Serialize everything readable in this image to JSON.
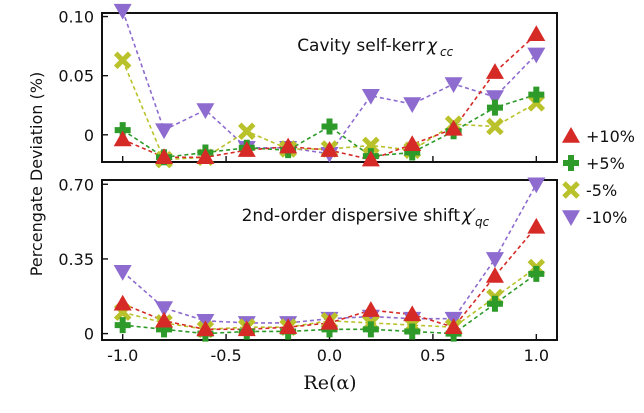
{
  "figure": {
    "ylabel": "Percengate Deviation (%)",
    "xlabel": "Re(α)"
  },
  "legend": {
    "placement": "right-center",
    "entries": [
      {
        "label": "+10%",
        "color": "#d62a26",
        "marker": "triangle-up"
      },
      {
        "label": "+5%",
        "color": "#2e9a2a",
        "marker": "plus"
      },
      {
        "label": "-5%",
        "color": "#b9c22a",
        "marker": "x"
      },
      {
        "label": "-10%",
        "color": "#8e6bcf",
        "marker": "triangle-down"
      }
    ]
  },
  "chart_data": [
    {
      "type": "line",
      "annotation": {
        "text": "Cavity self-kerr ",
        "symbol": "χ",
        "subscript": "cc",
        "prime": ""
      },
      "x": [
        -1.0,
        -0.8,
        -0.6,
        -0.4,
        -0.2,
        0.0,
        0.2,
        0.4,
        0.6,
        0.8,
        1.0
      ],
      "xlim": [
        -1.1,
        1.1
      ],
      "ylim": [
        -0.023,
        0.103
      ],
      "yticks": [
        0,
        0.05,
        0.1
      ],
      "ytick_labels": [
        "0",
        "0.05",
        "0.10"
      ],
      "xticks": [
        -1.0,
        -0.5,
        0.0,
        0.5,
        1.0
      ],
      "xtick_labels": [
        "",
        "",
        "",
        "",
        ""
      ],
      "series": [
        {
          "name": "+10%",
          "values": [
            -0.004,
            -0.019,
            -0.019,
            -0.013,
            -0.01,
            -0.013,
            -0.021,
            -0.008,
            0.005,
            0.053,
            0.085
          ]
        },
        {
          "name": "+5%",
          "values": [
            0.004,
            -0.019,
            -0.015,
            -0.011,
            -0.013,
            0.007,
            -0.018,
            -0.015,
            0.003,
            0.023,
            0.034
          ]
        },
        {
          "name": "-5%",
          "values": [
            0.063,
            -0.021,
            -0.019,
            0.003,
            -0.012,
            -0.012,
            -0.009,
            -0.013,
            0.009,
            0.007,
            0.027
          ]
        },
        {
          "name": "-10%",
          "values": [
            0.105,
            0.004,
            0.021,
            -0.011,
            -0.011,
            -0.016,
            0.033,
            0.026,
            0.043,
            0.032,
            0.068
          ]
        }
      ]
    },
    {
      "type": "line",
      "annotation": {
        "text": "2nd-order dispersive shift ",
        "symbol": "χ",
        "subscript": "qc",
        "prime": "′"
      },
      "x": [
        -1.0,
        -0.8,
        -0.6,
        -0.4,
        -0.2,
        0.0,
        0.2,
        0.4,
        0.6,
        0.8,
        1.0
      ],
      "xlim": [
        -1.1,
        1.1
      ],
      "ylim": [
        -0.03,
        0.72
      ],
      "yticks": [
        0,
        0.35,
        0.7
      ],
      "ytick_labels": [
        "0",
        "0.35",
        "0.70"
      ],
      "xticks": [
        -1.0,
        -0.5,
        0.0,
        0.5,
        1.0
      ],
      "xtick_labels": [
        "-1.0",
        "-0.5",
        "0.0",
        "0.5",
        "1.0"
      ],
      "series": [
        {
          "name": "+10%",
          "values": [
            0.14,
            0.06,
            0.02,
            0.02,
            0.03,
            0.05,
            0.11,
            0.09,
            0.03,
            0.27,
            0.5
          ]
        },
        {
          "name": "+5%",
          "values": [
            0.04,
            0.02,
            0.0,
            0.01,
            0.01,
            0.02,
            0.02,
            0.01,
            0.0,
            0.14,
            0.28
          ]
        },
        {
          "name": "-5%",
          "values": [
            0.1,
            0.05,
            0.02,
            0.03,
            0.03,
            0.06,
            0.05,
            0.04,
            0.03,
            0.17,
            0.31
          ]
        },
        {
          "name": "-10%",
          "values": [
            0.29,
            0.12,
            0.06,
            0.05,
            0.05,
            0.07,
            0.08,
            0.07,
            0.07,
            0.35,
            0.7
          ]
        }
      ]
    }
  ]
}
